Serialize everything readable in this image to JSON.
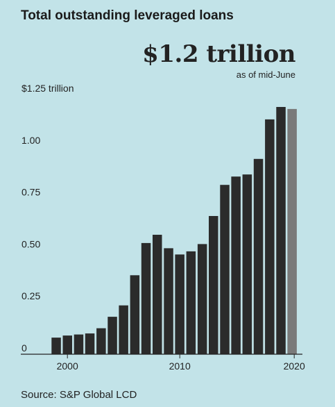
{
  "title": "Total outstanding leveraged loans",
  "headline": "$1.2 trillion",
  "subhead": "as of mid-June",
  "source": "Source: S&P Global LCD",
  "colors": {
    "background": "#c2e3e8",
    "bar": "#2b2b2b",
    "bar_highlight": "#7a7a7a"
  },
  "chart_data": {
    "type": "bar",
    "title": "Total outstanding leveraged loans",
    "xlabel": "",
    "ylabel": "",
    "ylim": [
      0,
      1.25
    ],
    "y_ticks": [
      {
        "value": 0,
        "label": "0"
      },
      {
        "value": 0.25,
        "label": "0.25"
      },
      {
        "value": 0.5,
        "label": "0.50"
      },
      {
        "value": 0.75,
        "label": "0.75"
      },
      {
        "value": 1.0,
        "label": "1.00"
      },
      {
        "value": 1.25,
        "label": "$1.25 trillion"
      }
    ],
    "x_ticks": [
      {
        "value": 2000,
        "label": "2000"
      },
      {
        "value": 2010,
        "label": "2010"
      },
      {
        "value": 2020,
        "label": "2020"
      }
    ],
    "categories": [
      1999,
      2000,
      2001,
      2002,
      2003,
      2004,
      2005,
      2006,
      2007,
      2008,
      2009,
      2010,
      2011,
      2012,
      2013,
      2014,
      2015,
      2016,
      2017,
      2018,
      2019,
      2020
    ],
    "values": [
      0.08,
      0.09,
      0.095,
      0.1,
      0.125,
      0.18,
      0.235,
      0.38,
      0.535,
      0.575,
      0.51,
      0.48,
      0.495,
      0.53,
      0.665,
      0.815,
      0.855,
      0.865,
      0.94,
      1.13,
      1.19,
      1.18
    ],
    "highlight_last": true,
    "grid": false
  }
}
